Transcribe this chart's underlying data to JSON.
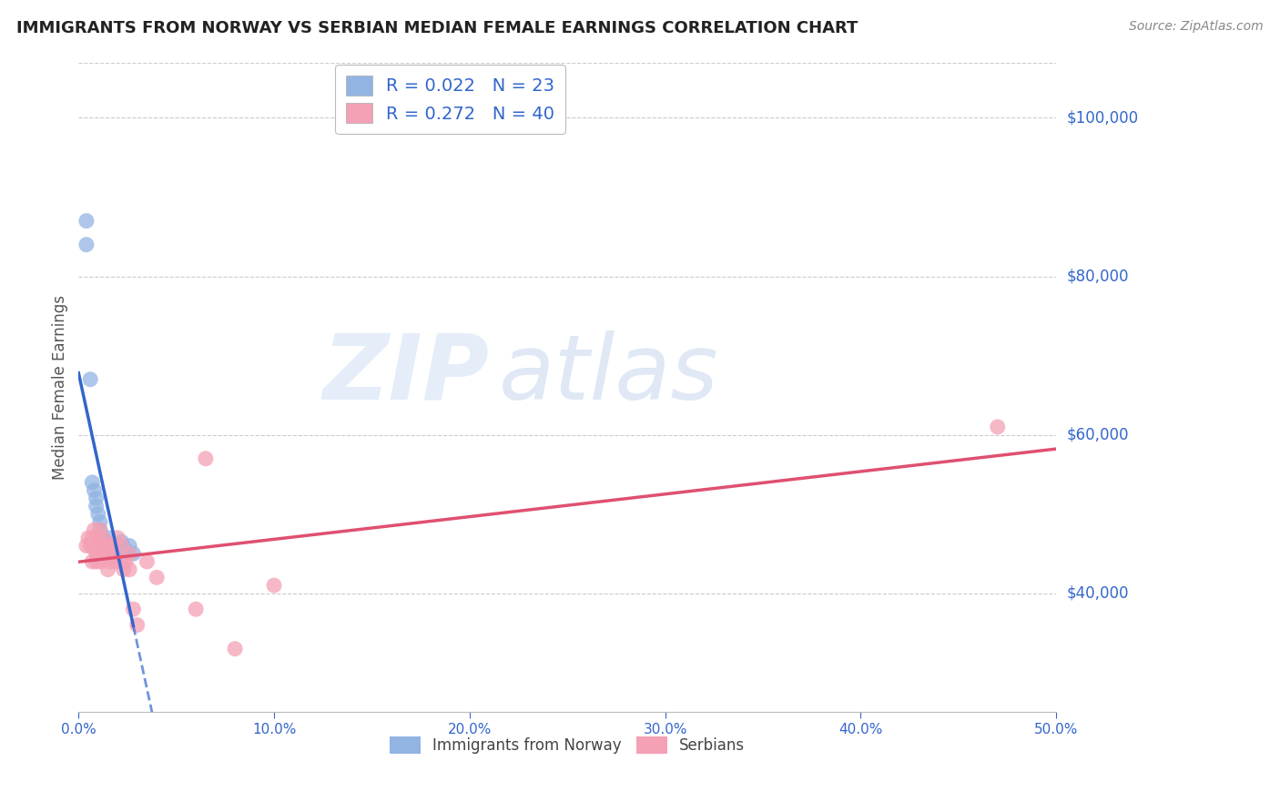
{
  "title": "IMMIGRANTS FROM NORWAY VS SERBIAN MEDIAN FEMALE EARNINGS CORRELATION CHART",
  "source": "Source: ZipAtlas.com",
  "ylabel": "Median Female Earnings",
  "ytick_labels": [
    "$40,000",
    "$60,000",
    "$80,000",
    "$100,000"
  ],
  "ytick_values": [
    40000,
    60000,
    80000,
    100000
  ],
  "xlim": [
    0.0,
    0.5
  ],
  "ylim": [
    25000,
    107000
  ],
  "norway_R": "0.022",
  "norway_N": "23",
  "serbia_R": "0.272",
  "serbia_N": "40",
  "norway_color": "#92b4e3",
  "serbia_color": "#f4a0b5",
  "norway_line_color": "#3366cc",
  "serbia_line_color": "#e05070",
  "norway_scatter_x": [
    0.004,
    0.004,
    0.006,
    0.007,
    0.008,
    0.009,
    0.009,
    0.01,
    0.011,
    0.011,
    0.012,
    0.013,
    0.014,
    0.015,
    0.016,
    0.017,
    0.018,
    0.019,
    0.02,
    0.022,
    0.024,
    0.026,
    0.028
  ],
  "norway_scatter_y": [
    87000,
    84000,
    67000,
    54000,
    53000,
    52000,
    51000,
    50000,
    49000,
    48000,
    47000,
    46500,
    46000,
    47000,
    46000,
    45500,
    45000,
    44500,
    46000,
    46500,
    45500,
    46000,
    45000
  ],
  "serbia_scatter_x": [
    0.004,
    0.005,
    0.006,
    0.007,
    0.007,
    0.008,
    0.008,
    0.009,
    0.009,
    0.01,
    0.01,
    0.011,
    0.011,
    0.011,
    0.012,
    0.013,
    0.014,
    0.015,
    0.015,
    0.016,
    0.016,
    0.017,
    0.018,
    0.019,
    0.02,
    0.021,
    0.022,
    0.023,
    0.024,
    0.026,
    0.026,
    0.028,
    0.03,
    0.035,
    0.04,
    0.06,
    0.065,
    0.08,
    0.1,
    0.47
  ],
  "serbia_scatter_y": [
    46000,
    47000,
    46000,
    47000,
    44000,
    48000,
    46000,
    45000,
    44000,
    47000,
    45000,
    48000,
    46000,
    44000,
    47000,
    46000,
    45000,
    46000,
    43000,
    46000,
    44000,
    45000,
    46000,
    44000,
    47000,
    44000,
    46000,
    43000,
    44000,
    45000,
    43000,
    38000,
    36000,
    44000,
    42000,
    38000,
    57000,
    33000,
    41000,
    61000
  ],
  "watermark_zip": "ZIP",
  "watermark_atlas": "atlas",
  "background_color": "#ffffff",
  "grid_color": "#cccccc",
  "title_color": "#222222",
  "axis_label_color": "#3366cc"
}
